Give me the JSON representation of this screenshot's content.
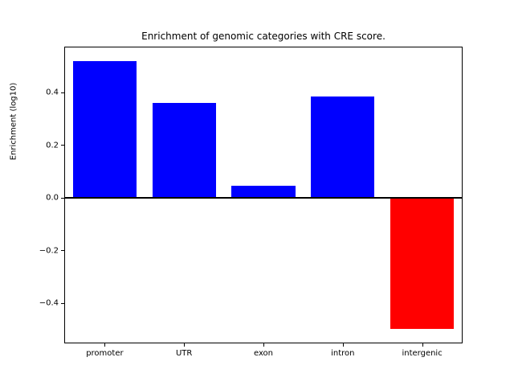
{
  "chart_data": {
    "type": "bar",
    "title": "Enrichment of genomic categories with CRE score.",
    "ylabel": "Enrichment (log10)",
    "xlabel": "",
    "categories": [
      "promoter",
      "UTR",
      "exon",
      "intron",
      "intergenic"
    ],
    "values": [
      0.52,
      0.36,
      0.045,
      0.385,
      -0.5
    ],
    "bar_colors": [
      "#0000ff",
      "#0000ff",
      "#0000ff",
      "#0000ff",
      "#ff0000"
    ],
    "positive_color": "#0000ff",
    "negative_color": "#ff0000",
    "ylim": [
      -0.551,
      0.571
    ],
    "yticks": [
      -0.4,
      -0.2,
      0.0,
      0.2,
      0.4
    ],
    "ytick_labels": [
      "−0.4",
      "−0.2",
      "0.0",
      "0.2",
      "0.4"
    ],
    "grid": false,
    "legend": false,
    "zero_line": true,
    "bar_width_fraction": 0.8
  }
}
